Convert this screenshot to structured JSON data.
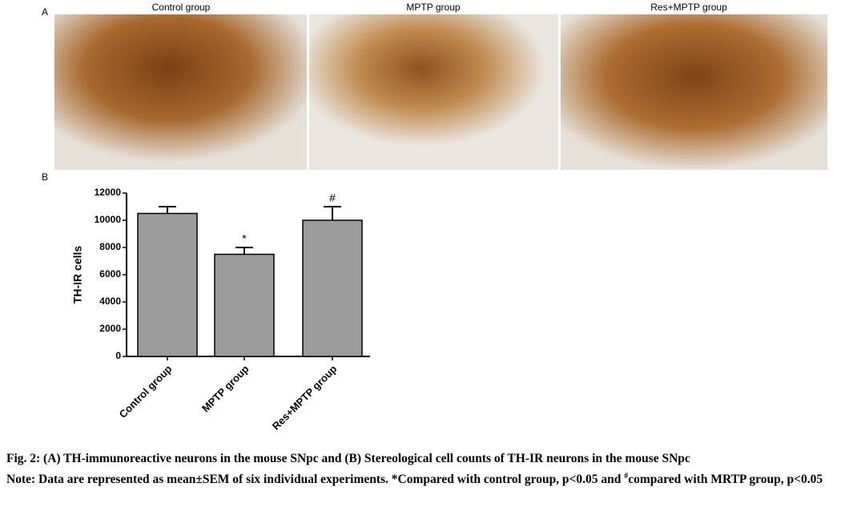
{
  "panel_a": {
    "label": "A",
    "titles": [
      "Control group",
      "MPTP group",
      "Res+MPTP group"
    ]
  },
  "panel_b": {
    "label": "B"
  },
  "chart_data": {
    "type": "bar",
    "ylabel": "TH-IR cells",
    "categories": [
      "Control group",
      "MPTP group",
      "Res+MPTP group"
    ],
    "values": [
      10500,
      7500,
      10000
    ],
    "errors": [
      500,
      500,
      1000
    ],
    "annotations": [
      null,
      "*",
      "#"
    ],
    "color": "#9c9c9c",
    "ylim": [
      0,
      12000
    ],
    "yticks": [
      0,
      2000,
      4000,
      6000,
      8000,
      10000,
      12000
    ]
  },
  "caption": {
    "title": "Fig. 2: (A) TH-immunoreactive neurons in the mouse SNpc and (B) Stereological cell counts of TH-IR neurons in the mouse SNpc",
    "note": [
      "Note: Data are represented as mean±SEM of six individual experiments. *Compared with control group, p<0.05 and ",
      "#",
      "compared with MRTP group, p<0.05"
    ]
  }
}
